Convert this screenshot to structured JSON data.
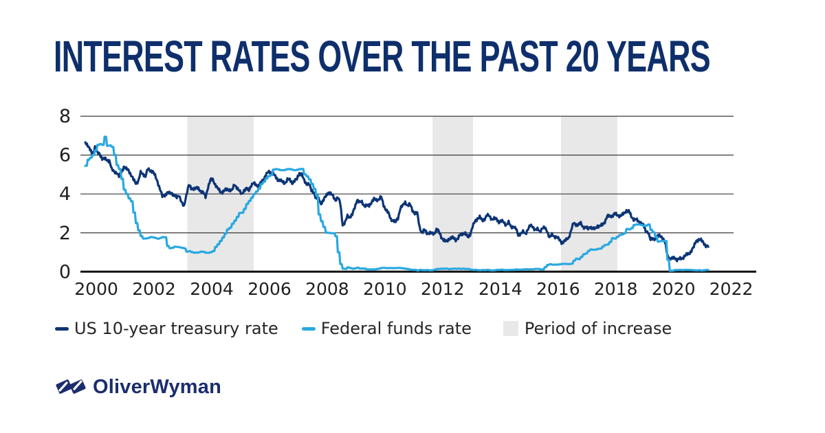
{
  "title": "INTEREST RATES OVER THE PAST 20 YEARS",
  "colors": {
    "title": "#0e2f6b",
    "navy_line": "#0d3575",
    "blue_line": "#29a8e0",
    "band": "#e8e8e8",
    "grid": "#3a3a3a",
    "axis": "#111111",
    "tick_text": "#1f1f1f",
    "legend_text": "#262626",
    "logo_navy": "#1b2d6e"
  },
  "legend": {
    "treasury_label": "US 10-year treasury rate",
    "fedfunds_label": "Federal funds rate",
    "band_label": "Period of increase"
  },
  "logo": {
    "text": "OliverWyman"
  },
  "chart_data": {
    "type": "line",
    "title": "INTEREST RATES OVER THE PAST 20 YEARS",
    "xlabel": "",
    "ylabel": "",
    "x_axis": {
      "range": [
        1999.45,
        2022.08
      ],
      "ticks": [
        2000,
        2002,
        2004,
        2006,
        2008,
        2010,
        2012,
        2014,
        2016,
        2018,
        2020,
        2022
      ]
    },
    "y_axis": {
      "range": [
        0,
        8
      ],
      "ticks": [
        0,
        2,
        4,
        6,
        8
      ]
    },
    "grid": "horizontal",
    "legend_position": "bottom",
    "increase_bands": [
      [
        2003.15,
        2005.45
      ],
      [
        2011.65,
        2013.05
      ],
      [
        2016.1,
        2018.05
      ]
    ],
    "series": [
      {
        "name": "US 10-year treasury rate",
        "color": "#0d3575",
        "interpolation": "linear",
        "start": 1999.62,
        "step": 0.08333,
        "values": [
          6.66,
          6.52,
          6.26,
          5.99,
          6.44,
          6.1,
          6.05,
          5.83,
          5.8,
          5.74,
          5.72,
          5.24,
          5.16,
          5.1,
          4.89,
          5.14,
          5.39,
          5.28,
          5.24,
          4.97,
          4.73,
          4.57,
          4.65,
          5.09,
          5.04,
          4.91,
          5.28,
          5.21,
          5.16,
          4.93,
          4.65,
          4.26,
          3.87,
          3.94,
          4.05,
          4.03,
          4.05,
          3.9,
          3.81,
          3.96,
          3.57,
          3.33,
          3.98,
          4.45,
          4.27,
          4.29,
          4.3,
          4.27,
          4.15,
          4.08,
          3.83,
          4.35,
          4.72,
          4.73,
          4.5,
          4.28,
          4.13,
          4.1,
          4.19,
          4.23,
          4.22,
          4.17,
          4.5,
          4.34,
          4.14,
          4.0,
          4.18,
          4.26,
          4.2,
          4.46,
          4.54,
          4.47,
          4.42,
          4.57,
          4.72,
          4.99,
          5.11,
          5.11,
          5.09,
          4.88,
          4.72,
          4.73,
          4.6,
          4.56,
          4.76,
          4.72,
          4.56,
          4.69,
          4.75,
          5.1,
          5.0,
          4.67,
          4.52,
          4.53,
          4.15,
          4.1,
          3.74,
          3.74,
          3.51,
          3.68,
          3.88,
          4.1,
          4.01,
          3.89,
          3.69,
          3.81,
          3.53,
          2.42,
          2.52,
          2.87,
          2.82,
          2.93,
          3.29,
          3.72,
          3.56,
          3.59,
          3.4,
          3.39,
          3.4,
          3.59,
          3.73,
          3.69,
          3.73,
          3.85,
          3.42,
          3.2,
          3.01,
          2.7,
          2.65,
          2.54,
          2.76,
          3.29,
          3.39,
          3.58,
          3.41,
          3.46,
          3.17,
          3.0,
          3.0,
          2.3,
          1.98,
          2.15,
          2.01,
          1.98,
          1.97,
          1.97,
          2.17,
          2.05,
          1.8,
          1.62,
          1.53,
          1.68,
          1.72,
          1.75,
          1.65,
          1.72,
          1.91,
          1.98,
          1.96,
          1.76,
          1.93,
          2.3,
          2.58,
          2.74,
          2.81,
          2.62,
          2.72,
          2.9,
          2.86,
          2.71,
          2.72,
          2.71,
          2.56,
          2.6,
          2.54,
          2.42,
          2.53,
          2.3,
          2.33,
          2.21,
          1.88,
          1.98,
          2.04,
          1.94,
          2.2,
          2.36,
          2.32,
          2.17,
          2.17,
          2.07,
          2.26,
          2.24,
          2.09,
          1.78,
          1.89,
          1.81,
          1.81,
          1.64,
          1.5,
          1.56,
          1.63,
          1.76,
          2.14,
          2.49,
          2.43,
          2.42,
          2.48,
          2.3,
          2.3,
          2.19,
          2.32,
          2.21,
          2.2,
          2.36,
          2.35,
          2.4,
          2.58,
          2.86,
          2.84,
          2.87,
          2.98,
          2.91,
          2.89,
          2.89,
          3.0,
          3.15,
          3.12,
          2.83,
          2.71,
          2.68,
          2.57,
          2.53,
          2.4,
          2.07,
          2.06,
          1.63,
          1.7,
          1.71,
          1.81,
          1.86,
          1.76,
          1.5,
          0.87,
          0.66,
          0.67,
          0.73,
          0.62,
          0.65,
          0.68,
          0.79,
          0.87,
          0.93,
          1.08,
          1.26,
          1.61,
          1.64,
          1.62,
          1.52,
          1.32,
          1.28
        ]
      },
      {
        "name": "Federal funds rate",
        "color": "#29a8e0",
        "interpolation": "step",
        "start": 1999.62,
        "step": 0.08333,
        "values": [
          5.45,
          5.73,
          5.85,
          6.02,
          6.27,
          6.53,
          6.54,
          6.5,
          6.95,
          6.51,
          6.51,
          6.4,
          5.98,
          5.49,
          5.31,
          4.8,
          4.21,
          3.97,
          3.77,
          3.65,
          3.07,
          2.49,
          2.09,
          1.82,
          1.73,
          1.74,
          1.73,
          1.75,
          1.75,
          1.75,
          1.73,
          1.74,
          1.75,
          1.75,
          1.34,
          1.24,
          1.24,
          1.26,
          1.25,
          1.26,
          1.26,
          1.22,
          1.01,
          1.03,
          1.01,
          1.01,
          1.0,
          0.98,
          1.0,
          1.01,
          1.0,
          1.0,
          1.0,
          1.03,
          1.26,
          1.43,
          1.61,
          1.76,
          1.93,
          2.16,
          2.28,
          2.5,
          2.63,
          2.79,
          3.0,
          3.04,
          3.26,
          3.5,
          3.62,
          3.78,
          4.0,
          4.16,
          4.29,
          4.49,
          4.59,
          4.79,
          4.94,
          4.99,
          5.24,
          5.25,
          5.25,
          5.25,
          5.25,
          5.24,
          5.25,
          5.26,
          5.26,
          5.25,
          5.25,
          5.25,
          5.26,
          5.02,
          4.94,
          4.76,
          4.49,
          4.24,
          3.94,
          2.98,
          2.61,
          2.28,
          1.98,
          2.0,
          2.01,
          2.0,
          1.81,
          0.97,
          0.39,
          0.16,
          0.15,
          0.22,
          0.18,
          0.15,
          0.18,
          0.21,
          0.16,
          0.16,
          0.15,
          0.12,
          0.12,
          0.12,
          0.11,
          0.13,
          0.16,
          0.2,
          0.2,
          0.18,
          0.18,
          0.19,
          0.19,
          0.19,
          0.19,
          0.18,
          0.17,
          0.16,
          0.14,
          0.1,
          0.09,
          0.09,
          0.07,
          0.1,
          0.08,
          0.07,
          0.08,
          0.07,
          0.08,
          0.1,
          0.13,
          0.14,
          0.16,
          0.16,
          0.16,
          0.13,
          0.14,
          0.16,
          0.16,
          0.16,
          0.14,
          0.15,
          0.14,
          0.15,
          0.11,
          0.09,
          0.09,
          0.08,
          0.08,
          0.09,
          0.08,
          0.09,
          0.07,
          0.07,
          0.08,
          0.09,
          0.09,
          0.1,
          0.09,
          0.09,
          0.09,
          0.09,
          0.09,
          0.12,
          0.11,
          0.11,
          0.11,
          0.12,
          0.12,
          0.13,
          0.13,
          0.14,
          0.14,
          0.12,
          0.12,
          0.24,
          0.34,
          0.38,
          0.36,
          0.37,
          0.37,
          0.38,
          0.39,
          0.4,
          0.4,
          0.4,
          0.41,
          0.54,
          0.65,
          0.66,
          0.79,
          0.9,
          0.91,
          1.04,
          1.15,
          1.16,
          1.15,
          1.15,
          1.16,
          1.3,
          1.41,
          1.42,
          1.51,
          1.69,
          1.7,
          1.82,
          1.91,
          1.91,
          1.95,
          2.19,
          2.2,
          2.27,
          2.4,
          2.4,
          2.41,
          2.42,
          2.39,
          2.38,
          2.4,
          2.13,
          2.04,
          1.83,
          1.55,
          1.55,
          1.55,
          1.58,
          0.65,
          0.05,
          0.05,
          0.08,
          0.09,
          0.1,
          0.09,
          0.09,
          0.09,
          0.09,
          0.09,
          0.08,
          0.07,
          0.07,
          0.06,
          0.08,
          0.1,
          0.09
        ]
      }
    ]
  }
}
